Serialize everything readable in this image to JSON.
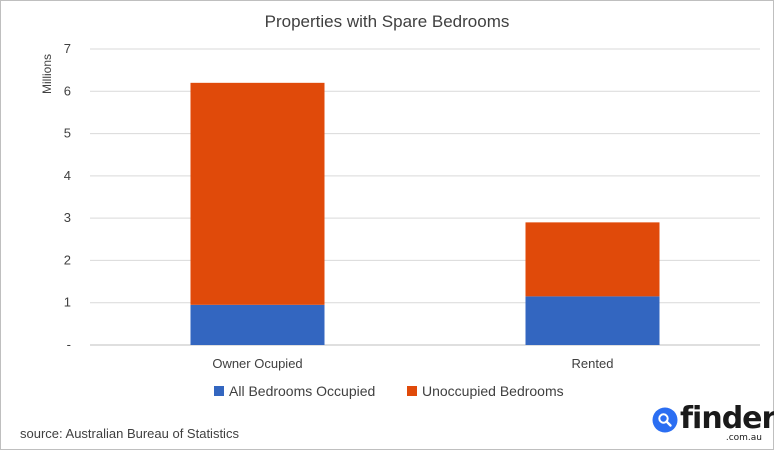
{
  "chart_data": {
    "type": "bar",
    "stacked": true,
    "title": "Properties with Spare Bedrooms",
    "ylabel": "Millions",
    "xlabel": "",
    "categories": [
      "Owner Ocupied",
      "Rented"
    ],
    "series": [
      {
        "name": "All Bedrooms Occupied",
        "values": [
          0.95,
          1.15
        ],
        "color": "#3366c0"
      },
      {
        "name": "Unoccupied Bedrooms",
        "values": [
          5.25,
          1.75
        ],
        "color": "#e04a0a"
      }
    ],
    "ylim": [
      0,
      7
    ],
    "yticks": [
      "-",
      "1",
      "2",
      "3",
      "4",
      "5",
      "6",
      "7"
    ],
    "grid": true,
    "legend": "bottom"
  },
  "source": "source: Australian Bureau of Statistics",
  "logo": {
    "name": "finder",
    "sub": ".com.au",
    "icon": "search-icon",
    "accent": "#2b6ef2"
  }
}
